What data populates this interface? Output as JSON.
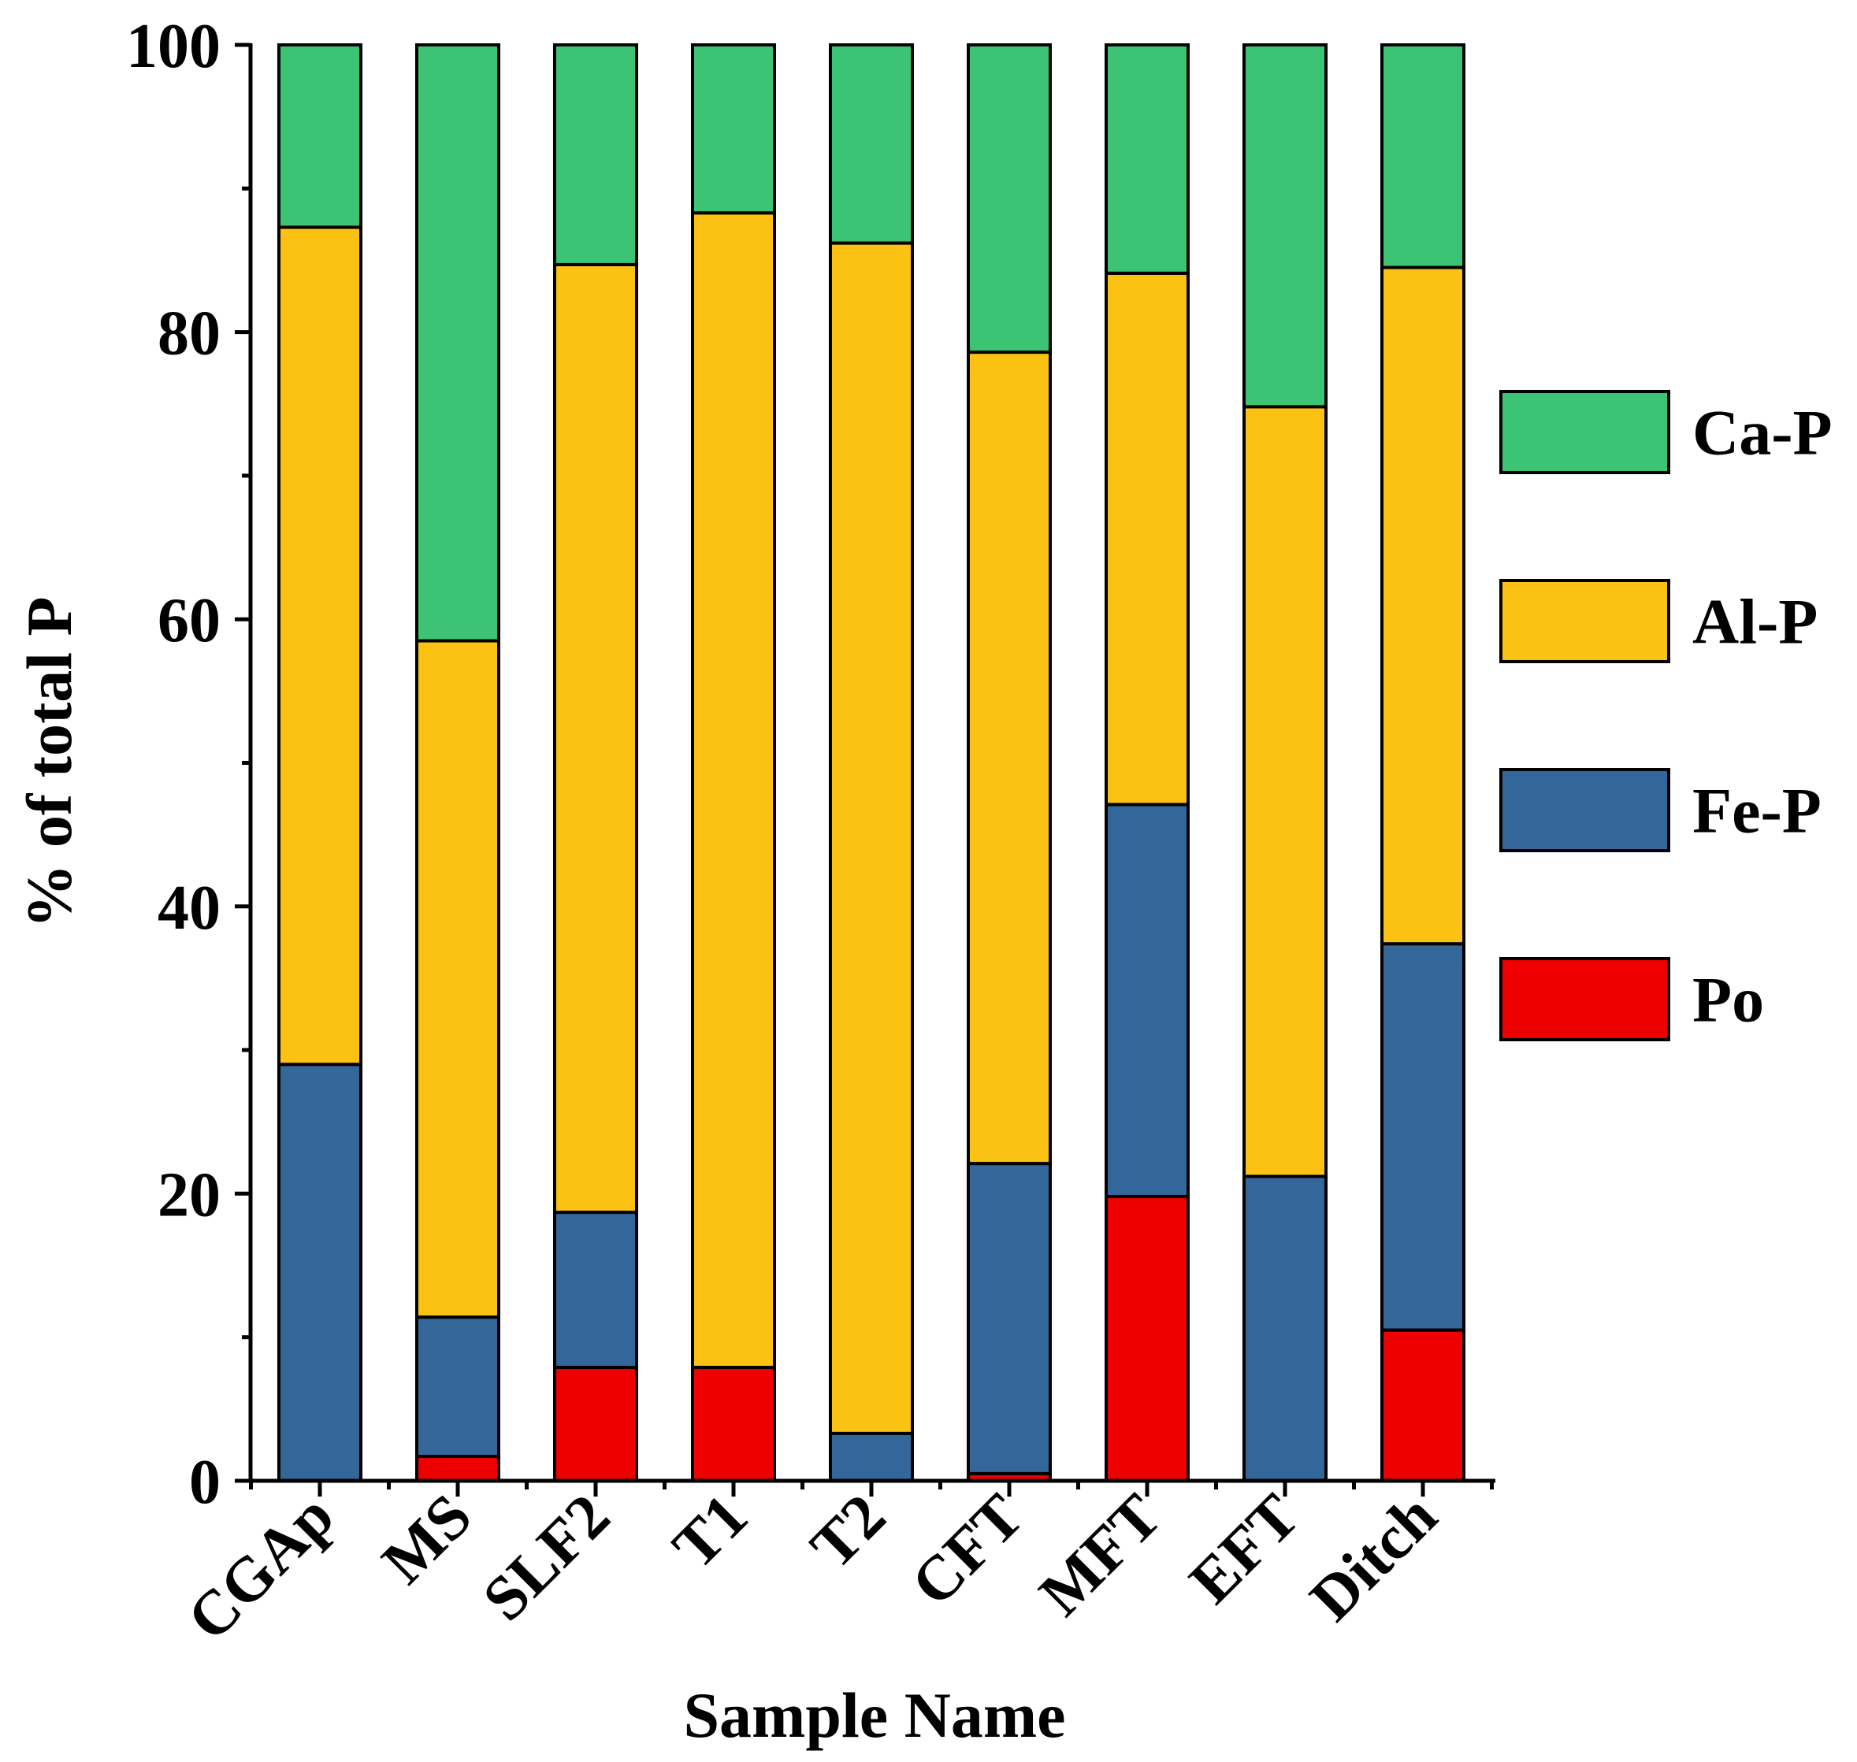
{
  "chart_data": {
    "type": "stacked-bar",
    "title": "",
    "xlabel": "Sample Name",
    "ylabel": "% of total P",
    "ylim": [
      0,
      100
    ],
    "yticks": [
      "0",
      "20",
      "40",
      "60",
      "80",
      "100"
    ],
    "categories": [
      "CGAp",
      "MS",
      "SLF2",
      "T1",
      "T2",
      "CFT",
      "MFT",
      "EFT",
      "Ditch"
    ],
    "series": [
      {
        "name": "Po",
        "color": "#ee0000",
        "values": [
          0,
          1.7,
          7.9,
          7.9,
          0,
          0.5,
          19.8,
          0,
          10.5
        ]
      },
      {
        "name": "Fe-P",
        "color": "#336699",
        "values": [
          29.0,
          9.7,
          10.8,
          0,
          3.3,
          21.6,
          27.3,
          21.2,
          26.9
        ]
      },
      {
        "name": "Al-P",
        "color": "#fcc213",
        "values": [
          58.3,
          47.1,
          66.0,
          80.4,
          82.9,
          56.5,
          37.0,
          53.6,
          47.1
        ]
      },
      {
        "name": "Ca-P",
        "color": "#3cc474",
        "values": [
          12.7,
          41.5,
          15.3,
          11.7,
          13.8,
          21.4,
          15.9,
          25.2,
          15.5
        ]
      }
    ],
    "legend_order": [
      "Ca-P",
      "Al-P",
      "Fe-P",
      "Po"
    ],
    "legend_position": "right"
  }
}
